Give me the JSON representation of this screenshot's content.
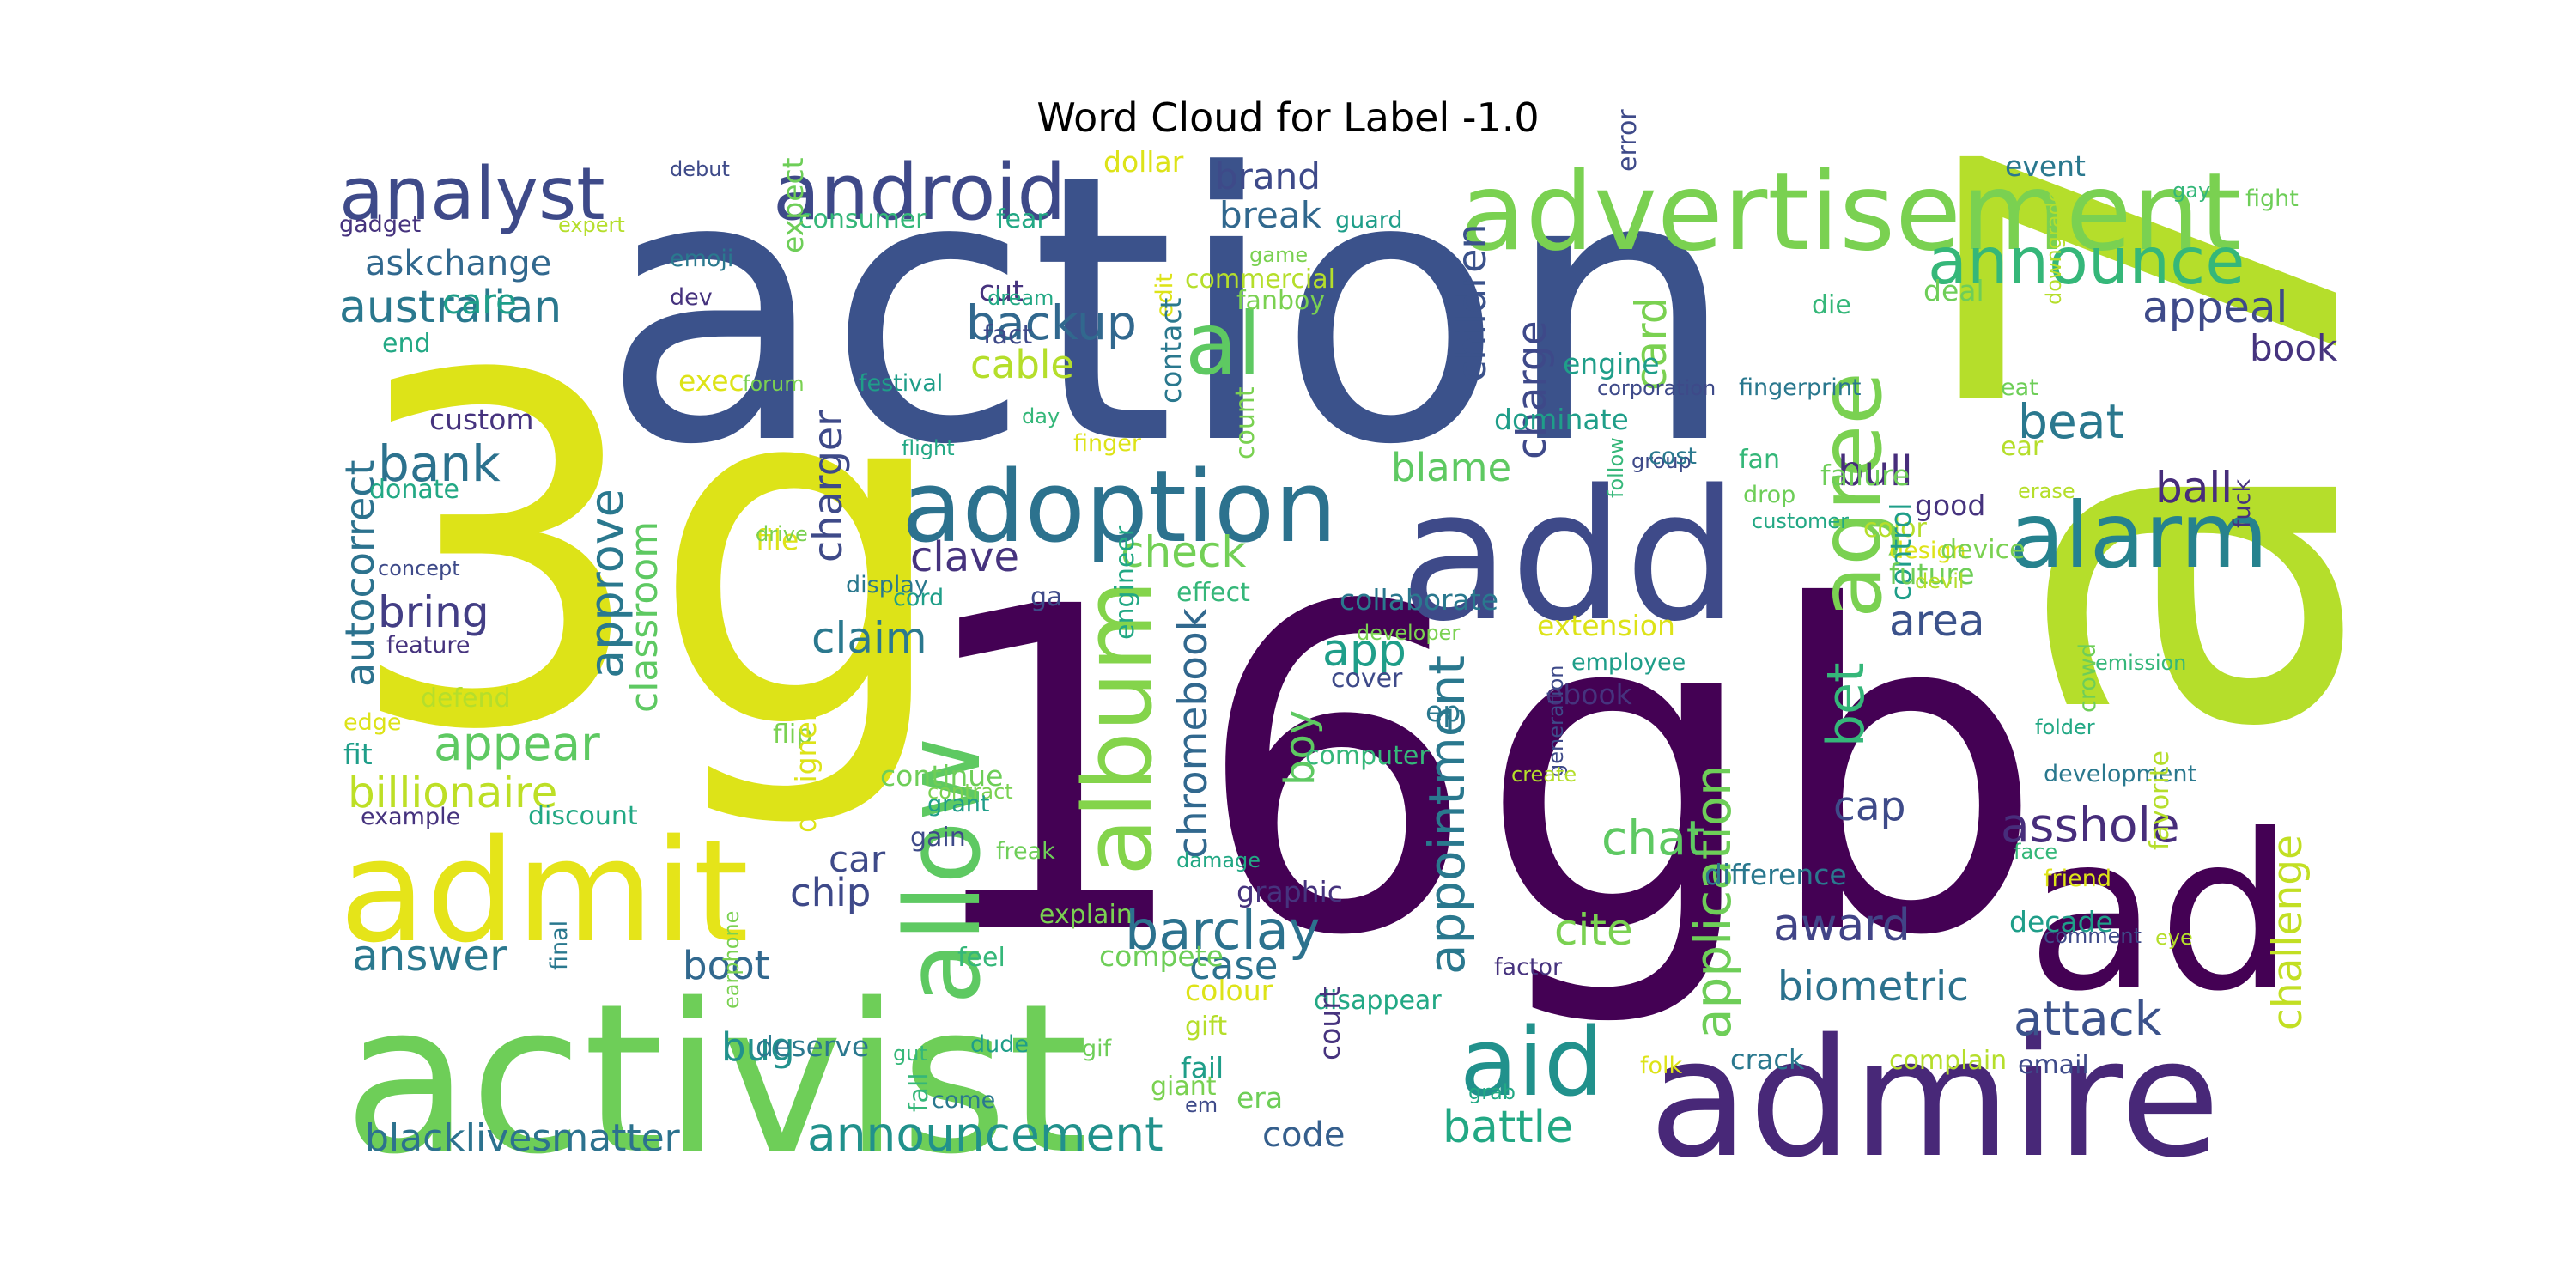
{
  "title": "Word Cloud for Label -1.0",
  "words": [
    {
      "text": "16gb",
      "color": "#440154"
    },
    {
      "text": "action",
      "color": "#3b528b"
    },
    {
      "text": "3g",
      "color": "#dde318"
    },
    {
      "text": "a7",
      "color": "#b5de2b"
    },
    {
      "text": "activist",
      "color": "#6ece58"
    },
    {
      "text": "admire",
      "color": "#482878"
    },
    {
      "text": "ad",
      "color": "#440154"
    },
    {
      "text": "add",
      "color": "#3e4a89"
    },
    {
      "text": "advertisement",
      "color": "#7ad151"
    },
    {
      "text": "admit",
      "color": "#e5e419"
    },
    {
      "text": "adoption",
      "color": "#2c728e"
    },
    {
      "text": "android",
      "color": "#3e4989"
    },
    {
      "text": "analyst",
      "color": "#3e4a89"
    },
    {
      "text": "allow",
      "color": "#5ec962"
    },
    {
      "text": "album",
      "color": "#84d44b"
    },
    {
      "text": "announce",
      "color": "#35b779"
    },
    {
      "text": "alarm",
      "color": "#26828e"
    },
    {
      "text": "agree",
      "color": "#7ad151"
    },
    {
      "text": "aid",
      "color": "#21918c"
    },
    {
      "text": "al",
      "color": "#5ec962"
    },
    {
      "text": "attack",
      "color": "#3b528b"
    },
    {
      "text": "announcement",
      "color": "#21918c"
    },
    {
      "text": "barclay",
      "color": "#2c728e"
    },
    {
      "text": "application",
      "color": "#6ece58"
    },
    {
      "text": "appointment",
      "color": "#2a788e"
    },
    {
      "text": "appear",
      "color": "#5ec962"
    },
    {
      "text": "billionaire",
      "color": "#bddf26"
    },
    {
      "text": "blacklivesmatter",
      "color": "#2c728e"
    },
    {
      "text": "award",
      "color": "#414487"
    },
    {
      "text": "battle",
      "color": "#22a884"
    },
    {
      "text": "biometric",
      "color": "#2c728e"
    },
    {
      "text": "asshole",
      "color": "#472d7b"
    },
    {
      "text": "challenge",
      "color": "#c2df23"
    },
    {
      "text": "chromebook",
      "color": "#31688e"
    },
    {
      "text": "backup",
      "color": "#31688e"
    },
    {
      "text": "australian",
      "color": "#2a788e"
    },
    {
      "text": "bank",
      "color": "#2c728e"
    },
    {
      "text": "autocorrect",
      "color": "#2c728e"
    },
    {
      "text": "approve",
      "color": "#2a788e"
    },
    {
      "text": "classroom",
      "color": "#5ec962"
    },
    {
      "text": "charger",
      "color": "#3e4a89"
    },
    {
      "text": "children",
      "color": "#3b528b"
    },
    {
      "text": "charge",
      "color": "#3e4989"
    },
    {
      "text": "card",
      "color": "#7ad151"
    },
    {
      "text": "appeal",
      "color": "#3e4a89"
    },
    {
      "text": "book",
      "color": "#46337e"
    },
    {
      "text": "beat",
      "color": "#2a788e"
    },
    {
      "text": "ball",
      "color": "#472d7b"
    },
    {
      "text": "bull",
      "color": "#472d7b"
    },
    {
      "text": "area",
      "color": "#3b528b"
    },
    {
      "text": "cap",
      "color": "#3e4a89"
    },
    {
      "text": "bet",
      "color": "#35b779"
    },
    {
      "text": "chat",
      "color": "#5ec962"
    },
    {
      "text": "cite",
      "color": "#7ad151"
    },
    {
      "text": "case",
      "color": "#2c728e"
    },
    {
      "text": "boy",
      "color": "#5ec962"
    },
    {
      "text": "app",
      "color": "#1f9e89"
    },
    {
      "text": "check",
      "color": "#73d056"
    },
    {
      "text": "clave",
      "color": "#46337e"
    },
    {
      "text": "claim",
      "color": "#2a788e"
    },
    {
      "text": "bring",
      "color": "#433e85"
    },
    {
      "text": "answer",
      "color": "#2a788e"
    },
    {
      "text": "admit2",
      "color": "#e5e419"
    },
    {
      "text": "car",
      "color": "#3e4a89"
    },
    {
      "text": "chip",
      "color": "#3e4989"
    },
    {
      "text": "boot",
      "color": "#31688e"
    },
    {
      "text": "bug",
      "color": "#21918c"
    },
    {
      "text": "code",
      "color": "#355f8d"
    },
    {
      "text": "cable",
      "color": "#b5de2b"
    },
    {
      "text": "break",
      "color": "#31688e"
    },
    {
      "text": "brand",
      "color": "#3e4a89"
    },
    {
      "text": "blame",
      "color": "#5ec962"
    },
    {
      "text": "ask",
      "color": "#31688e"
    },
    {
      "text": "change",
      "color": "#31688e"
    },
    {
      "text": "care",
      "color": "#1f9e89"
    },
    {
      "text": "crack",
      "color": "#2a788e"
    },
    {
      "text": "complain",
      "color": "#b5de2b"
    }
  ],
  "small_words": [
    "debut",
    "emoji",
    "consumer",
    "expect",
    "expert",
    "gadget",
    "fear",
    "dollar",
    "game",
    "guard",
    "error",
    "event",
    "gay",
    "fight",
    "commercial",
    "cut",
    "dream",
    "edit",
    "fanboy",
    "engine",
    "corporation",
    "fingerprint",
    "die",
    "deal",
    "downgrade",
    "dev",
    "end",
    "exec",
    "forum",
    "festival",
    "fact",
    "contact",
    "day",
    "eat",
    "ear",
    "custom",
    "flight",
    "finger",
    "count",
    "dominate",
    "group",
    "cost",
    "fan",
    "failure",
    "erase",
    "fuck",
    "donate",
    "file",
    "drive",
    "cord",
    "ga",
    "collaborate",
    "follow",
    "drop",
    "color",
    "good",
    "customer",
    "design",
    "device",
    "control",
    "concept",
    "display",
    "effect",
    "future",
    "devil",
    "feature",
    "engineer",
    "extension",
    "developer",
    "employee",
    "cover",
    "ep",
    "emission",
    "crowd",
    "defend",
    "ebook",
    "folder",
    "edge",
    "flip",
    "fit",
    "generation",
    "development",
    "computer",
    "continue",
    "create",
    "example",
    "discount",
    "designer",
    "contract",
    "grant",
    "gain",
    "difference",
    "face",
    "freak",
    "favorite",
    "graphic",
    "damage",
    "friend",
    "explain",
    "decade",
    "comment",
    "final",
    "feel",
    "compete",
    "eye",
    "factor",
    "disappear",
    "colour",
    "earphone",
    "dude",
    "email",
    "deserve",
    "gut",
    "gif",
    "gift",
    "court",
    "grab",
    "folk",
    "giant",
    "fail",
    "em",
    "come",
    "fall",
    "era"
  ]
}
